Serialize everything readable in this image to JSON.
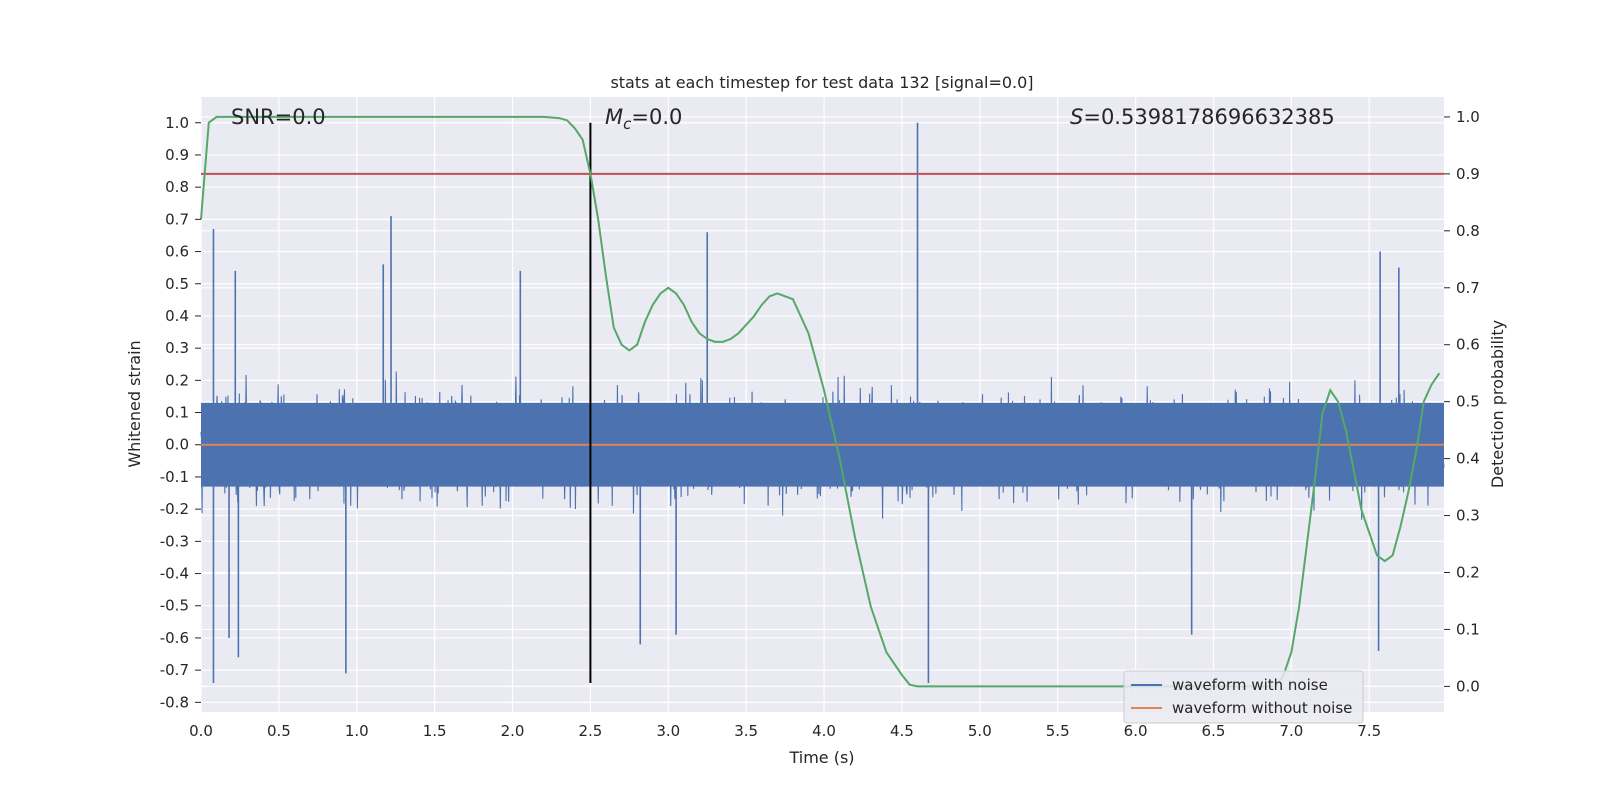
{
  "chart_data": {
    "type": "line",
    "title": "stats at each timestep for test data 132 [signal=0.0]",
    "xlabel": "Time (s)",
    "ylabel": "Whitened strain",
    "y2label": "Detection probability",
    "xlim": [
      0.0,
      7.98
    ],
    "ylim": [
      -0.83,
      1.08
    ],
    "y2lim": [
      -0.045,
      1.035
    ],
    "xticks": [
      "0.0",
      "0.5",
      "1.0",
      "1.5",
      "2.0",
      "2.5",
      "3.0",
      "3.5",
      "4.0",
      "4.5",
      "5.0",
      "5.5",
      "6.0",
      "6.5",
      "7.0",
      "7.5"
    ],
    "yticks": [
      "1.0",
      "0.9",
      "0.8",
      "0.7",
      "0.6",
      "0.5",
      "0.4",
      "0.3",
      "0.2",
      "0.1",
      "0.0",
      "-0.1",
      "-0.2",
      "-0.3",
      "-0.4",
      "-0.5",
      "-0.6",
      "-0.7",
      "-0.8"
    ],
    "y2ticks": [
      "1.0",
      "0.9",
      "0.8",
      "0.7",
      "0.6",
      "0.5",
      "0.4",
      "0.3",
      "0.2",
      "0.1",
      "0.0"
    ],
    "grid": true,
    "legend_position": "lower-right",
    "annotations": {
      "snr": "SNR=0.0",
      "mc_symbol": "M",
      "mc_subscript": "c",
      "mc_value": "=0.0",
      "s_symbol": "S",
      "s_value": "=0.5398178696632385"
    },
    "series": [
      {
        "name": "waveform with noise",
        "color": "#4c72b0",
        "description_kind": "noise",
        "envelope_typical": [
          -0.32,
          0.38
        ],
        "spikes": [
          {
            "x": 0.08,
            "y": 0.67
          },
          {
            "x": 0.08,
            "y": -0.74
          },
          {
            "x": 0.22,
            "y": 0.54
          },
          {
            "x": 0.24,
            "y": -0.66
          },
          {
            "x": 0.18,
            "y": -0.6
          },
          {
            "x": 0.93,
            "y": -0.71
          },
          {
            "x": 1.22,
            "y": 0.71
          },
          {
            "x": 1.17,
            "y": 0.56
          },
          {
            "x": 2.05,
            "y": 0.54
          },
          {
            "x": 2.82,
            "y": -0.62
          },
          {
            "x": 3.05,
            "y": -0.59
          },
          {
            "x": 3.25,
            "y": 0.66
          },
          {
            "x": 4.6,
            "y": 1.0
          },
          {
            "x": 4.67,
            "y": -0.74
          },
          {
            "x": 6.36,
            "y": -0.59
          },
          {
            "x": 7.56,
            "y": -0.64
          },
          {
            "x": 7.57,
            "y": 0.6
          },
          {
            "x": 7.69,
            "y": 0.55
          }
        ]
      },
      {
        "name": "waveform without noise",
        "color": "#dd8452",
        "x": [
          0.0,
          7.98
        ],
        "y": [
          0.0,
          0.0
        ]
      },
      {
        "name": "detection probability",
        "color": "#55a868",
        "axis": "right",
        "x": [
          0.0,
          0.05,
          0.1,
          0.2,
          0.5,
          1.0,
          1.5,
          2.0,
          2.2,
          2.3,
          2.35,
          2.4,
          2.45,
          2.5,
          2.55,
          2.6,
          2.65,
          2.7,
          2.75,
          2.8,
          2.85,
          2.9,
          2.95,
          3.0,
          3.05,
          3.1,
          3.15,
          3.2,
          3.25,
          3.3,
          3.35,
          3.4,
          3.45,
          3.5,
          3.55,
          3.6,
          3.65,
          3.7,
          3.75,
          3.8,
          3.85,
          3.9,
          3.95,
          4.0,
          4.05,
          4.1,
          4.15,
          4.2,
          4.3,
          4.4,
          4.5,
          4.55,
          4.6,
          4.7,
          5.0,
          6.0,
          6.9,
          6.95,
          7.0,
          7.05,
          7.1,
          7.15,
          7.2,
          7.25,
          7.3,
          7.35,
          7.4,
          7.45,
          7.5,
          7.55,
          7.6,
          7.65,
          7.7,
          7.75,
          7.8,
          7.85,
          7.9,
          7.95
        ],
        "y": [
          0.82,
          0.99,
          1.0,
          1.0,
          1.0,
          1.0,
          1.0,
          1.0,
          1.0,
          0.998,
          0.994,
          0.98,
          0.96,
          0.9,
          0.82,
          0.72,
          0.63,
          0.6,
          0.59,
          0.6,
          0.64,
          0.67,
          0.69,
          0.7,
          0.69,
          0.67,
          0.64,
          0.62,
          0.61,
          0.605,
          0.605,
          0.61,
          0.62,
          0.635,
          0.65,
          0.67,
          0.685,
          0.69,
          0.685,
          0.68,
          0.65,
          0.62,
          0.57,
          0.52,
          0.46,
          0.4,
          0.33,
          0.26,
          0.14,
          0.06,
          0.02,
          0.003,
          0.0,
          0.0,
          0.0,
          0.0,
          0.0,
          0.02,
          0.06,
          0.14,
          0.25,
          0.36,
          0.48,
          0.52,
          0.5,
          0.45,
          0.38,
          0.31,
          0.27,
          0.23,
          0.22,
          0.23,
          0.28,
          0.34,
          0.41,
          0.5,
          0.53,
          0.55
        ]
      }
    ],
    "hlines": [
      {
        "y2": 0.9,
        "color": "#c44e52",
        "width": 2
      }
    ],
    "vlines": [
      {
        "x": 2.5,
        "y_from": 1.0,
        "y_to": -0.74,
        "color": "#000000"
      }
    ],
    "legend": [
      "waveform with noise",
      "waveform without noise"
    ]
  }
}
